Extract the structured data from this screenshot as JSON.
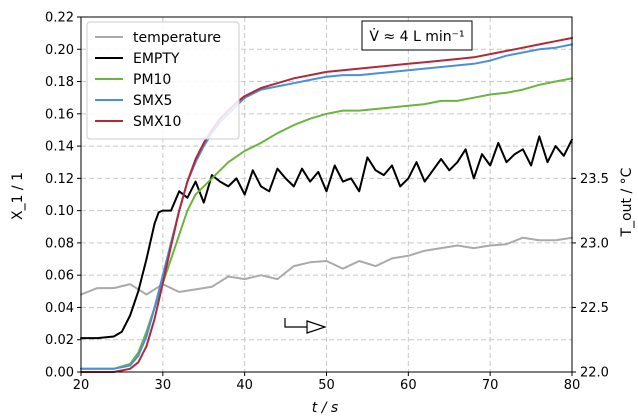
{
  "chart_data": {
    "type": "line",
    "xlabel": "t / s",
    "ylabel": "X_1 / 1",
    "y2label": "T_out / °C",
    "annotation": "V̇ ≈ 4 L min⁻¹",
    "xlim": [
      20,
      80
    ],
    "ylim": [
      0,
      0.22
    ],
    "y2lim": [
      22.0,
      24.75
    ],
    "grid": true,
    "legend_position": "top-left",
    "x_ticks": [
      20,
      30,
      40,
      50,
      60,
      70,
      80
    ],
    "y_ticks": [
      0.0,
      0.02,
      0.04,
      0.06,
      0.08,
      0.1,
      0.12,
      0.14,
      0.16,
      0.18,
      0.2,
      0.22
    ],
    "y_tick_labels": [
      "0.00",
      "0.02",
      "0.04",
      "0.06",
      "0.08",
      "0.10",
      "0.12",
      "0.14",
      "0.16",
      "0.18",
      "0.20",
      "0.22"
    ],
    "y2_ticks": [
      22.0,
      22.5,
      23.0,
      23.5
    ],
    "y2_tick_labels": [
      "22.0",
      "22.5",
      "23.0",
      "23.5"
    ],
    "series": [
      {
        "name": "temperature",
        "color": "#aaaaaa",
        "axis": "right",
        "x": [
          20,
          22,
          24,
          26,
          28,
          30,
          32,
          34,
          36,
          38,
          40,
          42,
          44,
          46,
          48,
          50,
          52,
          54,
          56,
          58,
          60,
          62,
          64,
          66,
          68,
          70,
          72,
          74,
          76,
          78,
          80
        ],
        "values": [
          22.6,
          22.65,
          22.65,
          22.68,
          22.6,
          22.68,
          22.62,
          22.64,
          22.66,
          22.74,
          22.72,
          22.75,
          22.72,
          22.82,
          22.85,
          22.86,
          22.8,
          22.86,
          22.82,
          22.88,
          22.9,
          22.94,
          22.96,
          22.98,
          22.96,
          22.98,
          22.99,
          23.04,
          23.02,
          23.02,
          23.04
        ]
      },
      {
        "name": "EMPTY",
        "color": "#000000",
        "axis": "left",
        "x": [
          20,
          22,
          24,
          25,
          26,
          27,
          28,
          29,
          29.5,
          30,
          31,
          32,
          33,
          34,
          35,
          36,
          37,
          38,
          39,
          40,
          41,
          42,
          43,
          44,
          45,
          46,
          47,
          48,
          49,
          50,
          51,
          52,
          53,
          54,
          55,
          56,
          57,
          58,
          59,
          60,
          61,
          62,
          63,
          64,
          65,
          66,
          67,
          68,
          69,
          70,
          71,
          72,
          73,
          74,
          75,
          76,
          77,
          78,
          79,
          80
        ],
        "values": [
          0.021,
          0.021,
          0.022,
          0.025,
          0.035,
          0.05,
          0.07,
          0.092,
          0.099,
          0.1,
          0.1,
          0.112,
          0.108,
          0.118,
          0.105,
          0.122,
          0.118,
          0.115,
          0.12,
          0.11,
          0.125,
          0.115,
          0.112,
          0.126,
          0.12,
          0.115,
          0.126,
          0.118,
          0.124,
          0.112,
          0.128,
          0.118,
          0.12,
          0.112,
          0.133,
          0.125,
          0.122,
          0.128,
          0.115,
          0.12,
          0.13,
          0.118,
          0.125,
          0.132,
          0.125,
          0.13,
          0.138,
          0.12,
          0.135,
          0.128,
          0.142,
          0.13,
          0.135,
          0.138,
          0.128,
          0.146,
          0.13,
          0.14,
          0.134,
          0.144
        ]
      },
      {
        "name": "PM10",
        "color": "#6db33f",
        "axis": "left",
        "x": [
          20,
          22,
          24,
          26,
          27,
          28,
          29,
          30,
          31,
          32,
          33,
          34,
          35,
          36,
          37,
          38,
          40,
          42,
          44,
          46,
          48,
          50,
          52,
          54,
          56,
          58,
          60,
          62,
          64,
          66,
          68,
          70,
          72,
          74,
          76,
          78,
          80
        ],
        "values": [
          0.002,
          0.002,
          0.002,
          0.005,
          0.012,
          0.025,
          0.04,
          0.055,
          0.07,
          0.085,
          0.1,
          0.11,
          0.115,
          0.12,
          0.125,
          0.13,
          0.137,
          0.142,
          0.148,
          0.153,
          0.157,
          0.16,
          0.162,
          0.162,
          0.163,
          0.164,
          0.165,
          0.166,
          0.168,
          0.168,
          0.17,
          0.172,
          0.173,
          0.175,
          0.178,
          0.18,
          0.182
        ]
      },
      {
        "name": "SMX5",
        "color": "#4a90d9",
        "axis": "left",
        "x": [
          20,
          22,
          24,
          26,
          27,
          28,
          29,
          30,
          31,
          32,
          33,
          34,
          35,
          36,
          37,
          38,
          39,
          40,
          42,
          44,
          46,
          48,
          50,
          52,
          54,
          56,
          58,
          60,
          62,
          64,
          66,
          68,
          70,
          72,
          74,
          76,
          78,
          80
        ],
        "values": [
          0.002,
          0.002,
          0.002,
          0.004,
          0.01,
          0.022,
          0.04,
          0.06,
          0.08,
          0.1,
          0.118,
          0.13,
          0.14,
          0.148,
          0.155,
          0.16,
          0.165,
          0.17,
          0.175,
          0.177,
          0.179,
          0.181,
          0.183,
          0.184,
          0.184,
          0.185,
          0.186,
          0.187,
          0.188,
          0.189,
          0.19,
          0.191,
          0.193,
          0.196,
          0.198,
          0.2,
          0.201,
          0.203
        ]
      },
      {
        "name": "SMX10",
        "color": "#b02a3a",
        "axis": "left",
        "x": [
          20,
          22,
          24,
          26,
          27,
          28,
          29,
          30,
          31,
          32,
          33,
          34,
          35,
          36,
          37,
          38,
          39,
          40,
          42,
          44,
          46,
          48,
          50,
          52,
          54,
          56,
          58,
          60,
          62,
          64,
          66,
          68,
          70,
          72,
          74,
          76,
          78,
          80
        ],
        "values": [
          0.0,
          0.0,
          0.0,
          0.002,
          0.006,
          0.016,
          0.033,
          0.055,
          0.078,
          0.1,
          0.118,
          0.132,
          0.142,
          0.15,
          0.157,
          0.162,
          0.167,
          0.171,
          0.176,
          0.179,
          0.182,
          0.184,
          0.186,
          0.187,
          0.188,
          0.189,
          0.19,
          0.191,
          0.192,
          0.193,
          0.194,
          0.195,
          0.197,
          0.199,
          0.201,
          0.203,
          0.205,
          0.207
        ]
      }
    ]
  }
}
